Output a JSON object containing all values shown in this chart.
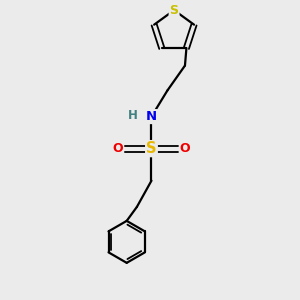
{
  "background_color": "#ebebeb",
  "atom_colors": {
    "S_sulfonamide": "#e8b800",
    "S_thiophene": "#c8c000",
    "N": "#0000ee",
    "O": "#ee0000",
    "C": "#000000",
    "H": "#408080"
  },
  "figsize": [
    3.0,
    3.0
  ],
  "dpi": 100,
  "xlim": [
    0,
    10
  ],
  "ylim": [
    0,
    10
  ]
}
